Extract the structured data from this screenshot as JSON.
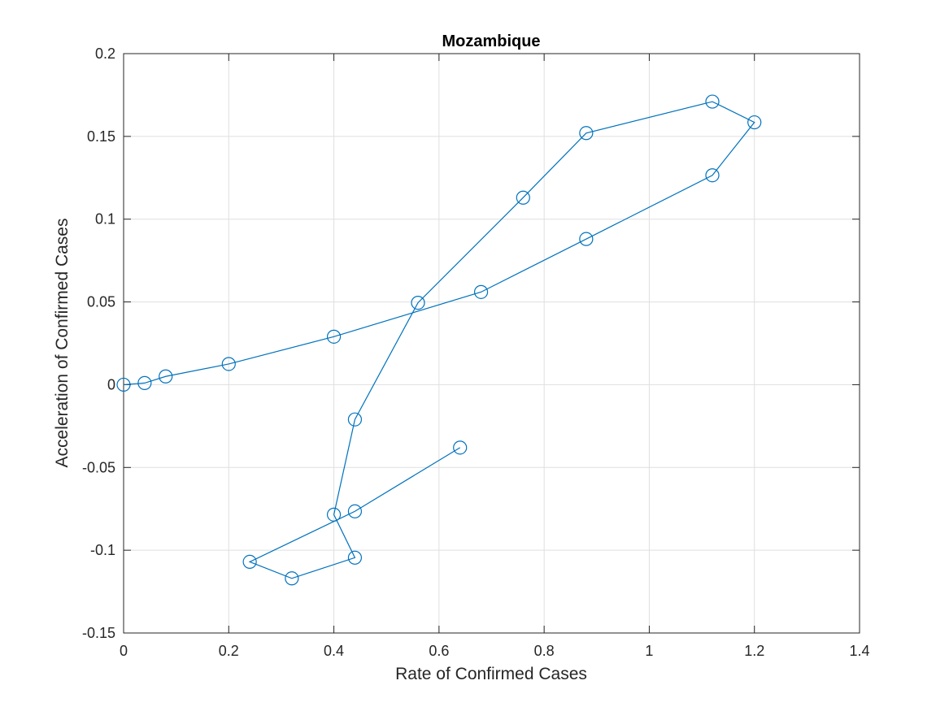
{
  "chart_data": {
    "type": "line",
    "title": "Mozambique",
    "xlabel": "Rate of Confirmed Cases",
    "ylabel": "Acceleration of Confirmed Cases",
    "xlim": [
      0,
      1.4
    ],
    "ylim": [
      -0.15,
      0.2
    ],
    "xticks": [
      0,
      0.2,
      0.4,
      0.6,
      0.8,
      1,
      1.2,
      1.4
    ],
    "xtick_labels": [
      "0",
      "0.2",
      "0.4",
      "0.6",
      "0.8",
      "1",
      "1.2",
      "1.4"
    ],
    "yticks": [
      -0.15,
      -0.1,
      -0.05,
      0,
      0.05,
      0.1,
      0.15,
      0.2
    ],
    "ytick_labels": [
      "-0.15",
      "-0.1",
      "-0.05",
      "0",
      "0.05",
      "0.1",
      "0.15",
      "0.2"
    ],
    "grid": true,
    "marker": "circle",
    "line_color": "#0072BD",
    "series": [
      {
        "x": [
          0,
          0.04,
          0.08,
          0.2,
          0.4,
          0.68,
          0.88,
          1.12,
          1.2,
          1.12,
          0.88,
          0.76,
          0.56,
          0.44,
          0.4,
          0.44,
          0.32,
          0.24,
          0.44,
          0.64
        ],
        "y": [
          0,
          0.001,
          0.005,
          0.0125,
          0.029,
          0.056,
          0.088,
          0.1265,
          0.1585,
          0.171,
          0.152,
          0.113,
          0.0495,
          -0.021,
          -0.0785,
          -0.1045,
          -0.117,
          -0.107,
          -0.0765,
          -0.038
        ]
      }
    ]
  }
}
